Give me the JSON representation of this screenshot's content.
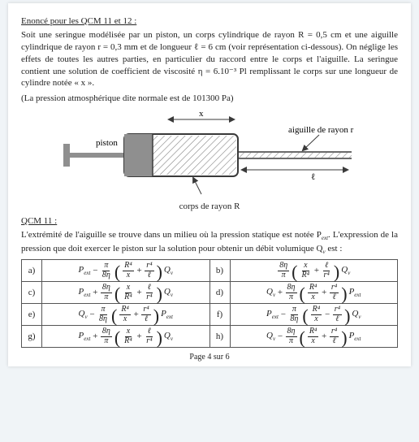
{
  "header": "Enoncé pour les QCM 11 et 12 :",
  "statement": {
    "p1": "Soit une seringue modélisée par un piston, un corps cylindrique de rayon R = 0,5 cm et une aiguille cylindrique de rayon r = 0,3 mm et de longueur ℓ = 6 cm (voir représentation ci-dessous). On néglige les effets de toutes les autres parties, en particulier du raccord entre le corps et l'aiguille. La seringue contient une solution de coefficient de viscosité η = 6.10⁻³ Pl remplissant le corps sur une longueur de cylindre notée « x ».",
    "p2": "(La pression atmosphérique dite normale est de 101300 Pa)"
  },
  "diagram": {
    "label_x": "x",
    "label_piston": "piston",
    "label_aiguille": "aiguille de rayon r",
    "label_ell": "ℓ",
    "label_corps": "corps de rayon R",
    "colors": {
      "outline": "#3a3a3a",
      "piston": "#8f8f8f",
      "hatch": "#8a8a8a",
      "bg": "#ffffff"
    }
  },
  "qcm11_head": "QCM 11 :",
  "qcm11_text": "L'extrémité de l'aiguille se trouve dans un milieu où la pression statique est notée P_ext. L'expression de la pression que doit exercer le piston sur la solution pour obtenir un débit volumique Q_v est :",
  "answers": {
    "a": {
      "lead": "P",
      "leadsub": "ext",
      "op": "−",
      "pre_num": "π",
      "pre_den": "8η",
      "t1n": "R⁴",
      "t1d": "x",
      "mid": "+",
      "t2n": "r⁴",
      "t2d": "ℓ",
      "tail": "Q",
      "tailsub": "v"
    },
    "b": {
      "lead": "",
      "leadsub": "",
      "op": "",
      "pre_num": "8η",
      "pre_den": "π",
      "t1n": "x",
      "t1d": "R⁴",
      "mid": "+",
      "t2n": "ℓ",
      "t2d": "r⁴",
      "tail": "Q",
      "tailsub": "v"
    },
    "c": {
      "lead": "P",
      "leadsub": "ext",
      "op": "+",
      "pre_num": "8η",
      "pre_den": "π",
      "t1n": "x",
      "t1d": "R⁴",
      "mid": "+",
      "t2n": "ℓ",
      "t2d": "r⁴",
      "tail": "Q",
      "tailsub": "v"
    },
    "d": {
      "lead": "Q",
      "leadsub": "v",
      "op": "+",
      "pre_num": "8η",
      "pre_den": "π",
      "t1n": "R⁴",
      "t1d": "x",
      "mid": "+",
      "t2n": "r⁴",
      "t2d": "ℓ",
      "tail": "P",
      "tailsub": "ext"
    },
    "e": {
      "lead": "Q",
      "leadsub": "v",
      "op": "−",
      "pre_num": "π",
      "pre_den": "8η",
      "t1n": "R⁴",
      "t1d": "x",
      "mid": "+",
      "t2n": "r⁴",
      "t2d": "ℓ",
      "tail": "P",
      "tailsub": "ext"
    },
    "f": {
      "lead": "P",
      "leadsub": "ext",
      "op": "−",
      "pre_num": "π",
      "pre_den": "8η",
      "t1n": "R⁴",
      "t1d": "x",
      "mid": "−",
      "t2n": "r⁴",
      "t2d": "ℓ",
      "tail": "Q",
      "tailsub": "v"
    },
    "g": {
      "lead": "P",
      "leadsub": "ext",
      "op": "+",
      "pre_num": "8η",
      "pre_den": "π",
      "t1n": "x",
      "t1d": "R⁴",
      "mid": "+",
      "t2n": "ℓ",
      "t2d": "r⁴",
      "tail": "Q",
      "tailsub": "v"
    },
    "h": {
      "lead": "Q",
      "leadsub": "v",
      "op": "−",
      "pre_num": "8η",
      "pre_den": "π",
      "t1n": "R⁴",
      "t1d": "x",
      "mid": "+",
      "t2n": "r⁴",
      "t2d": "ℓ",
      "tail": "P",
      "tailsub": "ext"
    }
  },
  "labels": {
    "a": "a)",
    "b": "b)",
    "c": "c)",
    "d": "d)",
    "e": "e)",
    "f": "f)",
    "g": "g)",
    "h": "h)"
  },
  "footer": "Page 4 sur 6"
}
